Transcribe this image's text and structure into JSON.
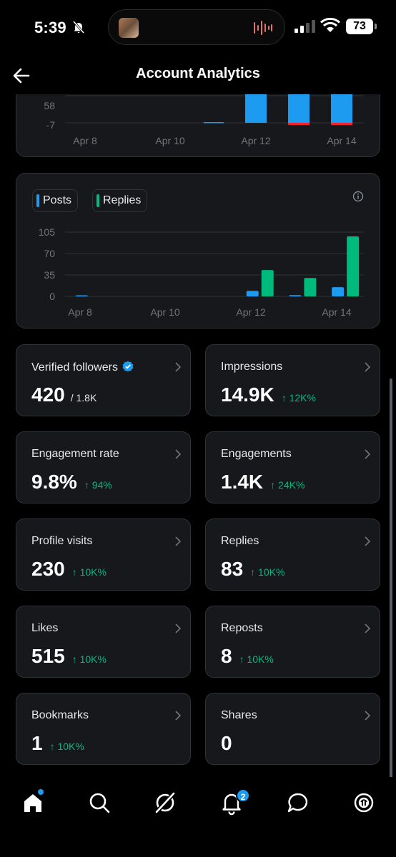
{
  "status_bar": {
    "time": "5:39",
    "battery": "73"
  },
  "header": {
    "title": "Account Analytics"
  },
  "chart_top": {
    "chart_data": {
      "type": "bar",
      "ytick_labels": [
        "58",
        "-7"
      ],
      "xtick_labels": [
        "Apr 8",
        "Apr 10",
        "Apr 12",
        "Apr 14"
      ]
    }
  },
  "chart_bottom": {
    "legend": {
      "posts": "Posts",
      "replies": "Replies"
    },
    "chart_data": {
      "type": "bar",
      "categories": [
        "Apr 8",
        "Apr 9",
        "Apr 10",
        "Apr 11",
        "Apr 12",
        "Apr 13",
        "Apr 14"
      ],
      "series": [
        {
          "name": "Posts",
          "color": "#1d9bf0",
          "values": [
            1,
            0,
            0,
            0,
            9,
            2,
            15
          ]
        },
        {
          "name": "Replies",
          "color": "#00ba7c",
          "values": [
            0,
            0,
            0,
            0,
            43,
            30,
            98
          ]
        }
      ],
      "yticks": [
        "105",
        "70",
        "35",
        "0"
      ],
      "ylim": [
        0,
        105
      ],
      "xtick_labels": [
        "Apr 8",
        "Apr 10",
        "Apr 12",
        "Apr 14"
      ]
    }
  },
  "metrics": {
    "verified_followers": {
      "label": "Verified followers",
      "value": "420",
      "sub": "/ 1.8K"
    },
    "impressions": {
      "label": "Impressions",
      "value": "14.9K",
      "delta": "↑ 12K%"
    },
    "engagement_rate": {
      "label": "Engagement rate",
      "value": "9.8%",
      "delta": "↑ 94%"
    },
    "engagements": {
      "label": "Engagements",
      "value": "1.4K",
      "delta": "↑ 24K%"
    },
    "profile_visits": {
      "label": "Profile visits",
      "value": "230",
      "delta": "↑ 10K%"
    },
    "replies": {
      "label": "Replies",
      "value": "83",
      "delta": "↑ 10K%"
    },
    "likes": {
      "label": "Likes",
      "value": "515",
      "delta": "↑ 10K%"
    },
    "reposts": {
      "label": "Reposts",
      "value": "8",
      "delta": "↑ 10K%"
    },
    "bookmarks": {
      "label": "Bookmarks",
      "value": "1",
      "delta": "↑ 10K%"
    },
    "shares": {
      "label": "Shares",
      "value": "0"
    }
  },
  "tabbar": {
    "notifications_badge": "2"
  }
}
